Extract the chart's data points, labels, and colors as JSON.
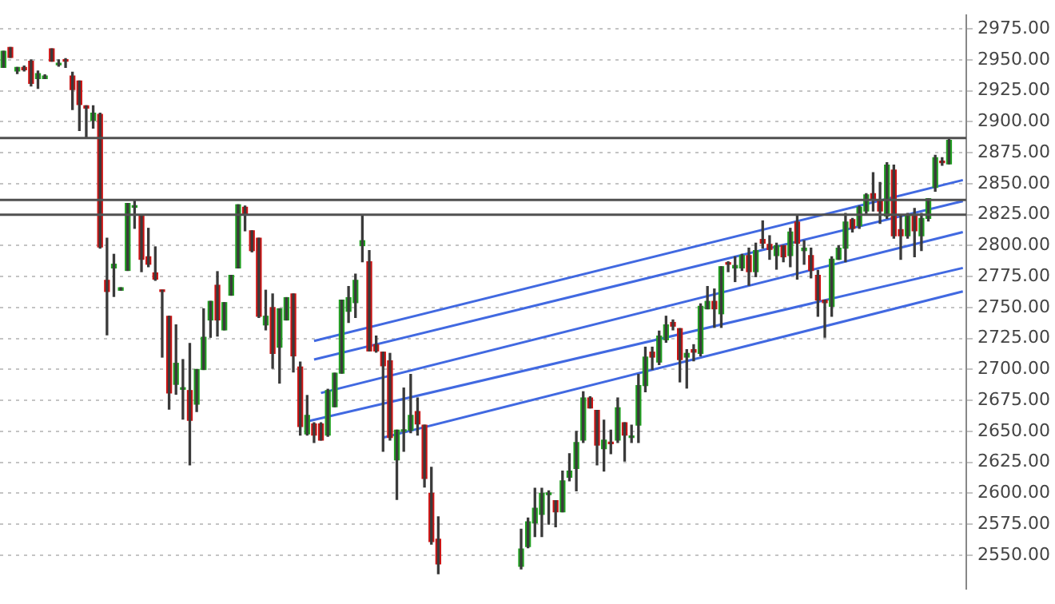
{
  "chart_data": {
    "type": "candlestick",
    "categories": [
      null,
      null,
      null,
      null,
      null,
      null,
      null,
      null,
      null,
      null,
      null,
      null,
      null,
      null,
      null,
      null,
      null,
      null,
      null,
      null,
      null,
      null,
      null,
      null,
      null,
      null,
      null,
      null,
      null,
      null,
      null,
      null,
      null,
      null,
      null,
      null,
      null,
      null,
      null,
      null,
      null,
      null,
      null,
      null,
      null,
      null,
      null,
      null,
      null,
      null,
      null,
      null,
      null,
      null,
      null,
      null,
      null,
      null,
      null,
      null,
      null,
      null,
      null,
      null,
      null,
      null,
      null,
      null,
      null,
      null,
      null,
      null,
      null,
      null,
      null,
      null,
      null,
      null,
      null,
      null,
      null,
      null,
      null,
      null,
      null,
      null,
      null,
      null,
      null,
      null,
      null,
      null,
      null,
      null,
      null,
      null,
      null,
      null,
      null,
      null,
      null,
      null,
      null,
      null,
      null,
      null,
      null,
      null,
      null,
      null,
      null,
      null,
      null,
      null,
      null,
      null,
      null,
      null,
      null,
      null,
      null,
      null,
      null,
      null,
      null,
      null,
      null,
      null,
      null,
      null,
      null,
      null,
      null,
      null,
      null,
      null,
      null,
      null,
      null,
      null
    ],
    "ohlc": [
      [
        2944,
        2957,
        2944,
        2957
      ],
      [
        2960,
        2960,
        2952,
        2952
      ],
      [
        2941,
        2944,
        2939,
        2944
      ],
      [
        2944,
        2945,
        2941,
        2942
      ],
      [
        2949,
        2950,
        2929,
        2931
      ],
      [
        2935,
        2941,
        2927,
        2939
      ],
      [
        2935,
        2938,
        2935,
        2937
      ],
      [
        2959,
        2959,
        2949,
        2949
      ],
      [
        2946,
        2950,
        2945,
        2947
      ],
      [
        2950,
        2951,
        2944,
        2949
      ],
      [
        2937,
        2940,
        2910,
        2926
      ],
      [
        2933,
        2933,
        2893,
        2914
      ],
      [
        2913,
        2913,
        2887,
        2911
      ],
      [
        2901,
        2913,
        2895,
        2907
      ],
      [
        2906,
        2907,
        2798,
        2799
      ],
      [
        2772,
        2806,
        2728,
        2763
      ],
      [
        2782,
        2793,
        2759,
        2785
      ],
      [
        2764,
        2766,
        2764,
        2766
      ],
      [
        2780,
        2834,
        2780,
        2834
      ],
      [
        2831,
        2837,
        2814,
        2832
      ],
      [
        2825,
        2825,
        2779,
        2789
      ],
      [
        2791,
        2814,
        2783,
        2785
      ],
      [
        2778,
        2799,
        2772,
        2773
      ],
      [
        2764,
        2764,
        2710,
        2763
      ],
      [
        2743,
        2743,
        2668,
        2681
      ],
      [
        2688,
        2736,
        2680,
        2705
      ],
      [
        2684,
        2708,
        2660,
        2685
      ],
      [
        2683,
        2721,
        2623,
        2659
      ],
      [
        2672,
        2700,
        2666,
        2700
      ],
      [
        2700,
        2749,
        2700,
        2726
      ],
      [
        2740,
        2755,
        2726,
        2755
      ],
      [
        2768,
        2779,
        2727,
        2740
      ],
      [
        2732,
        2754,
        2732,
        2754
      ],
      [
        2760,
        2776,
        2760,
        2776
      ],
      [
        2782,
        2833,
        2782,
        2833
      ],
      [
        2831,
        2832,
        2812,
        2825
      ],
      [
        2812,
        2812,
        2795,
        2796
      ],
      [
        2806,
        2806,
        2742,
        2743
      ],
      [
        2736,
        2764,
        2732,
        2743
      ],
      [
        2750,
        2761,
        2701,
        2713
      ],
      [
        2718,
        2749,
        2689,
        2749
      ],
      [
        2740,
        2758,
        2740,
        2758
      ],
      [
        2761,
        2761,
        2698,
        2711
      ],
      [
        2702,
        2706,
        2647,
        2654
      ],
      [
        2648,
        2679,
        2647,
        2663
      ],
      [
        2656,
        2657,
        2641,
        2647
      ],
      [
        2656,
        2657,
        2643,
        2643
      ],
      [
        2647,
        2684,
        2646,
        2683
      ],
      [
        2670,
        2697,
        2670,
        2697
      ],
      [
        2697,
        2756,
        2697,
        2756
      ],
      [
        2747,
        2767,
        2738,
        2758
      ],
      [
        2754,
        2777,
        2742,
        2772
      ],
      [
        2800,
        2825,
        2787,
        2804
      ],
      [
        2787,
        2796,
        2715,
        2715
      ],
      [
        2720,
        2727,
        2714,
        2715
      ],
      [
        2714,
        2714,
        2634,
        2703
      ],
      [
        2707,
        2713,
        2643,
        2645
      ],
      [
        2627,
        2651,
        2595,
        2651
      ],
      [
        2650,
        2685,
        2634,
        2651
      ],
      [
        2651,
        2696,
        2649,
        2663
      ],
      [
        2666,
        2677,
        2647,
        2656
      ],
      [
        2655,
        2655,
        2605,
        2612
      ],
      [
        2600,
        2621,
        2559,
        2561
      ],
      [
        2563,
        2581,
        2535,
        2543
      ],
      null,
      null,
      null,
      null,
      null,
      null,
      null,
      null,
      null,
      null,
      null,
      [
        2541,
        2571,
        2539,
        2555
      ],
      [
        2557,
        2580,
        2556,
        2577
      ],
      [
        2576,
        2604,
        2565,
        2588
      ],
      [
        2583,
        2604,
        2565,
        2600
      ],
      [
        2599,
        2602,
        2575,
        2600
      ],
      [
        2594,
        2594,
        2573,
        2585
      ],
      [
        2585,
        2618,
        2585,
        2610
      ],
      [
        2613,
        2632,
        2610,
        2618
      ],
      [
        2620,
        2650,
        2602,
        2641
      ],
      [
        2643,
        2682,
        2641,
        2677
      ],
      [
        2677,
        2678,
        2669,
        2669
      ],
      [
        2667,
        2667,
        2623,
        2639
      ],
      [
        2636,
        2659,
        2618,
        2643
      ],
      [
        2641,
        2651,
        2632,
        2640
      ],
      [
        2643,
        2677,
        2641,
        2669
      ],
      [
        2657,
        2657,
        2626,
        2647
      ],
      [
        2645,
        2655,
        2641,
        2646
      ],
      [
        2655,
        2696,
        2641,
        2687
      ],
      [
        2687,
        2718,
        2682,
        2710
      ],
      [
        2714,
        2718,
        2700,
        2710
      ],
      [
        2706,
        2731,
        2704,
        2727
      ],
      [
        2724,
        2743,
        2722,
        2736
      ],
      [
        2738,
        2740,
        2732,
        2735
      ],
      [
        2733,
        2733,
        2690,
        2708
      ],
      [
        2710,
        2716,
        2685,
        2713
      ],
      [
        2716,
        2720,
        2707,
        2714
      ],
      [
        2713,
        2753,
        2711,
        2751
      ],
      [
        2749,
        2767,
        2749,
        2755
      ],
      [
        2755,
        2765,
        2734,
        2749
      ],
      [
        2745,
        2783,
        2734,
        2783
      ],
      [
        2786,
        2787,
        2779,
        2785
      ],
      [
        2782,
        2791,
        2771,
        2784
      ],
      [
        2782,
        2793,
        2780,
        2792
      ],
      [
        2792,
        2798,
        2768,
        2779
      ],
      [
        2779,
        2802,
        2775,
        2796
      ],
      [
        2805,
        2820,
        2798,
        2802
      ],
      [
        2801,
        2808,
        2789,
        2797
      ],
      [
        2792,
        2802,
        2781,
        2800
      ],
      [
        2800,
        2800,
        2787,
        2791
      ],
      [
        2792,
        2814,
        2783,
        2811
      ],
      [
        2819,
        2825,
        2773,
        2802
      ],
      [
        2796,
        2804,
        2785,
        2798
      ],
      [
        2792,
        2798,
        2774,
        2780
      ],
      [
        2776,
        2780,
        2743,
        2756
      ],
      [
        2756,
        2756,
        2726,
        2754
      ],
      [
        2751,
        2791,
        2743,
        2789
      ],
      [
        2789,
        2800,
        2789,
        2798
      ],
      [
        2798,
        2826,
        2787,
        2819
      ],
      [
        2821,
        2822,
        2811,
        2814
      ],
      [
        2816,
        2832,
        2814,
        2831
      ],
      [
        2828,
        2842,
        2826,
        2841
      ],
      [
        2842,
        2859,
        2828,
        2837
      ],
      [
        2836,
        2851,
        2818,
        2828
      ],
      [
        2824,
        2867,
        2822,
        2865
      ],
      [
        2861,
        2865,
        2806,
        2808
      ],
      [
        2813,
        2824,
        2789,
        2808
      ],
      [
        2808,
        2826,
        2806,
        2824
      ],
      [
        2825,
        2830,
        2791,
        2812
      ],
      [
        2808,
        2826,
        2796,
        2822
      ],
      [
        2822,
        2838,
        2820,
        2838
      ],
      [
        2847,
        2873,
        2844,
        2871
      ],
      [
        2868,
        2871,
        2865,
        2867
      ],
      [
        2866,
        2886,
        2866,
        2885
      ],
      null,
      null
    ],
    "series": [
      {
        "type": "line",
        "color": "#4169e1",
        "values": [
          null,
          null,
          null,
          null,
          null,
          null,
          null,
          null,
          null,
          null,
          null,
          null,
          null,
          null,
          null,
          null,
          null,
          null,
          null,
          null,
          null,
          null,
          null,
          null,
          null,
          null,
          null,
          null,
          null,
          null,
          null,
          null,
          null,
          null,
          null,
          null,
          null,
          null,
          null,
          null,
          null,
          null,
          null,
          null,
          null,
          2723,
          null,
          null,
          null,
          null,
          null,
          null,
          null,
          null,
          null,
          null,
          null,
          null,
          null,
          null,
          null,
          null,
          null,
          null,
          null,
          null,
          null,
          null,
          null,
          null,
          null,
          null,
          null,
          null,
          null,
          null,
          null,
          null,
          null,
          null,
          null,
          null,
          null,
          null,
          null,
          null,
          null,
          null,
          null,
          null,
          null,
          null,
          null,
          null,
          null,
          null,
          null,
          null,
          null,
          null,
          null,
          null,
          null,
          null,
          null,
          null,
          null,
          null,
          null,
          null,
          null,
          null,
          null,
          null,
          null,
          null,
          null,
          null,
          null,
          null,
          null,
          null,
          null,
          null,
          null,
          null,
          null,
          null,
          null,
          null,
          null,
          null,
          null,
          null,
          null,
          null,
          null,
          null,
          null,
          2853
        ]
      },
      {
        "type": "line",
        "color": "#4169e1",
        "values": [
          null,
          null,
          null,
          null,
          null,
          null,
          null,
          null,
          null,
          null,
          null,
          null,
          null,
          null,
          null,
          null,
          null,
          null,
          null,
          null,
          null,
          null,
          null,
          null,
          null,
          null,
          null,
          null,
          null,
          null,
          null,
          null,
          null,
          null,
          null,
          null,
          null,
          null,
          null,
          null,
          null,
          null,
          null,
          null,
          null,
          2708,
          null,
          null,
          null,
          null,
          null,
          null,
          null,
          null,
          null,
          null,
          null,
          null,
          null,
          null,
          null,
          null,
          null,
          null,
          null,
          null,
          null,
          null,
          null,
          null,
          null,
          null,
          null,
          null,
          null,
          null,
          null,
          null,
          null,
          null,
          null,
          null,
          null,
          null,
          null,
          null,
          null,
          null,
          null,
          null,
          null,
          null,
          null,
          null,
          null,
          null,
          null,
          null,
          null,
          null,
          null,
          null,
          null,
          null,
          null,
          null,
          null,
          null,
          null,
          null,
          null,
          null,
          null,
          null,
          null,
          null,
          null,
          null,
          null,
          null,
          null,
          null,
          null,
          null,
          null,
          null,
          null,
          null,
          null,
          null,
          null,
          null,
          null,
          null,
          null,
          null,
          null,
          null,
          null,
          2836
        ]
      },
      {
        "type": "line",
        "color": "#4169e1",
        "values": [
          null,
          null,
          null,
          null,
          null,
          null,
          null,
          null,
          null,
          null,
          null,
          null,
          null,
          null,
          null,
          null,
          null,
          null,
          null,
          null,
          null,
          null,
          null,
          null,
          null,
          null,
          null,
          null,
          null,
          null,
          null,
          null,
          null,
          null,
          null,
          null,
          null,
          null,
          null,
          null,
          null,
          null,
          null,
          null,
          null,
          null,
          2681,
          null,
          null,
          null,
          null,
          null,
          null,
          null,
          null,
          null,
          null,
          null,
          null,
          null,
          null,
          null,
          null,
          null,
          null,
          null,
          null,
          null,
          null,
          null,
          null,
          null,
          null,
          null,
          null,
          null,
          null,
          null,
          null,
          null,
          null,
          null,
          null,
          null,
          null,
          null,
          null,
          null,
          null,
          null,
          null,
          null,
          null,
          null,
          null,
          null,
          null,
          null,
          null,
          null,
          null,
          null,
          null,
          null,
          null,
          null,
          null,
          null,
          null,
          null,
          null,
          null,
          null,
          null,
          null,
          null,
          null,
          null,
          null,
          null,
          null,
          null,
          null,
          null,
          null,
          null,
          null,
          null,
          null,
          null,
          null,
          null,
          null,
          null,
          null,
          null,
          null,
          null,
          null,
          2811
        ]
      },
      {
        "type": "line",
        "color": "#4169e1",
        "values": [
          null,
          null,
          null,
          null,
          null,
          null,
          null,
          null,
          null,
          null,
          null,
          null,
          null,
          null,
          null,
          null,
          null,
          null,
          null,
          null,
          null,
          null,
          null,
          null,
          null,
          null,
          null,
          null,
          null,
          null,
          null,
          null,
          null,
          null,
          null,
          null,
          null,
          null,
          null,
          null,
          null,
          null,
          null,
          null,
          2658,
          null,
          null,
          null,
          null,
          null,
          null,
          null,
          null,
          null,
          null,
          null,
          null,
          null,
          null,
          null,
          null,
          null,
          null,
          null,
          null,
          null,
          null,
          null,
          null,
          null,
          null,
          null,
          null,
          null,
          null,
          null,
          null,
          null,
          null,
          null,
          null,
          null,
          null,
          null,
          null,
          null,
          null,
          null,
          null,
          null,
          null,
          null,
          null,
          null,
          null,
          null,
          null,
          null,
          null,
          null,
          null,
          null,
          null,
          null,
          null,
          null,
          null,
          null,
          null,
          null,
          null,
          null,
          null,
          null,
          null,
          null,
          null,
          null,
          null,
          null,
          null,
          null,
          null,
          null,
          null,
          null,
          null,
          null,
          null,
          null,
          null,
          null,
          null,
          null,
          null,
          null,
          null,
          null,
          null,
          2782
        ]
      },
      {
        "type": "line",
        "color": "#4169e1",
        "values": [
          null,
          null,
          null,
          null,
          null,
          null,
          null,
          null,
          null,
          null,
          null,
          null,
          null,
          null,
          null,
          null,
          null,
          null,
          null,
          null,
          null,
          null,
          null,
          null,
          null,
          null,
          null,
          null,
          null,
          null,
          null,
          null,
          null,
          null,
          null,
          null,
          null,
          null,
          null,
          null,
          null,
          null,
          null,
          null,
          null,
          null,
          null,
          null,
          null,
          null,
          null,
          null,
          null,
          null,
          null,
          2645,
          null,
          null,
          null,
          null,
          null,
          null,
          null,
          null,
          null,
          null,
          null,
          null,
          null,
          null,
          null,
          null,
          null,
          null,
          null,
          null,
          null,
          null,
          null,
          null,
          null,
          null,
          null,
          null,
          null,
          null,
          null,
          null,
          null,
          null,
          null,
          null,
          null,
          null,
          null,
          null,
          null,
          null,
          null,
          null,
          null,
          null,
          null,
          null,
          null,
          null,
          null,
          null,
          null,
          null,
          null,
          null,
          null,
          null,
          null,
          null,
          null,
          null,
          null,
          null,
          null,
          null,
          null,
          null,
          null,
          null,
          null,
          null,
          null,
          null,
          null,
          null,
          null,
          null,
          null,
          null,
          null,
          null,
          null,
          2763
        ]
      }
    ],
    "ref_lines": [
      {
        "axis": "y",
        "value": 2887,
        "color": "#505050"
      },
      {
        "axis": "y",
        "value": 2837,
        "color": "#505050"
      },
      {
        "axis": "y",
        "value": 2825,
        "color": "#505050"
      }
    ],
    "ylim": [
      2523,
      2986
    ],
    "yticks": [
      {
        "value": 2550,
        "label": "2550.00"
      },
      {
        "value": 2575,
        "label": "2575.00"
      },
      {
        "value": 2600,
        "label": "2600.00"
      },
      {
        "value": 2625,
        "label": "2625.00"
      },
      {
        "value": 2650,
        "label": "2650.00"
      },
      {
        "value": 2675,
        "label": "2675.00"
      },
      {
        "value": 2700,
        "label": "2700.00"
      },
      {
        "value": 2725,
        "label": "2725.00"
      },
      {
        "value": 2750,
        "label": "2750.00"
      },
      {
        "value": 2775,
        "label": "2775.00"
      },
      {
        "value": 2800,
        "label": "2800.00"
      },
      {
        "value": 2825,
        "label": "2825.00"
      },
      {
        "value": 2850,
        "label": "2850.00"
      },
      {
        "value": 2875,
        "label": "2875.00"
      },
      {
        "value": 2900,
        "label": "2900.00"
      },
      {
        "value": 2925,
        "label": "2925.00"
      },
      {
        "value": 2950,
        "label": "2950.00"
      },
      {
        "value": 2975,
        "label": "2975.00"
      }
    ],
    "grid": "y",
    "legend": false,
    "marker": "none",
    "line_style": "solid",
    "tick_labels": "y"
  }
}
